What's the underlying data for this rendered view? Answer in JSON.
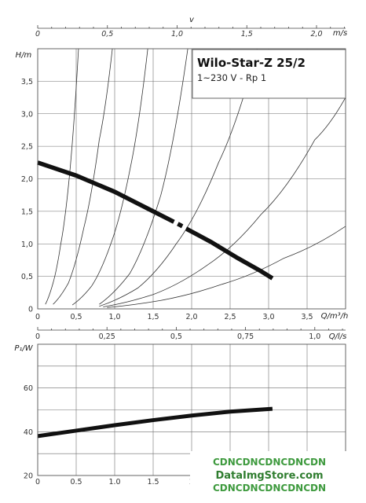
{
  "chart_data": [
    {
      "type": "line",
      "title": "Wilo-Star-Z 25/2",
      "subtitle": "1~230 V - Rp 1",
      "ylabel": "H/m",
      "xlabel": "Q/m³/h",
      "top_axis_title": "v",
      "top_axis_unit": "m/s",
      "top_axis_ticks": [
        "0",
        "0,5",
        "1,0",
        "1,5",
        "2,0"
      ],
      "top_axis_values": [
        0,
        0.5,
        1.0,
        1.5,
        2.0
      ],
      "xlim": [
        0,
        4.0
      ],
      "ylim": [
        0,
        4.0
      ],
      "x_ticks": [
        "0",
        "0,5",
        "1,0",
        "1,5",
        "2,0",
        "2,5",
        "3,0",
        "3,5"
      ],
      "x_tick_values": [
        0,
        0.5,
        1.0,
        1.5,
        2.0,
        2.5,
        3.0,
        3.5
      ],
      "y_ticks": [
        "0",
        "0,5",
        "1,0",
        "1,5",
        "2,0",
        "2,5",
        "3,0",
        "3,5"
      ],
      "y_tick_values": [
        0,
        0.5,
        1.0,
        1.5,
        2.0,
        2.5,
        3.0,
        3.5
      ],
      "grid": true,
      "series": [
        {
          "x": [
            0,
            0.5,
            1.0,
            1.5,
            1.75,
            1.85,
            1.95,
            2.25,
            2.6,
            2.9,
            3.05
          ],
          "y": [
            2.25,
            2.05,
            1.8,
            1.5,
            1.35,
            1.29,
            1.22,
            1.03,
            0.78,
            0.58,
            0.47
          ]
        }
      ],
      "system_curves": [
        {
          "x": [
            0.1,
            0.2,
            0.3,
            0.4,
            0.53
          ],
          "y": [
            0.07,
            0.4,
            1.0,
            1.9,
            4.0
          ]
        },
        {
          "x": [
            0.2,
            0.4,
            0.6,
            0.8,
            0.97
          ],
          "y": [
            0.07,
            0.4,
            1.25,
            2.6,
            4.0
          ]
        },
        {
          "x": [
            0.45,
            0.7,
            0.95,
            1.2,
            1.43
          ],
          "y": [
            0.06,
            0.35,
            1.0,
            2.15,
            4.0
          ]
        },
        {
          "x": [
            0.8,
            1.2,
            1.6,
            1.95
          ],
          "y": [
            0.07,
            0.55,
            1.75,
            4.0
          ]
        },
        {
          "x": [
            0.8,
            1.3,
            1.8,
            2.35,
            2.85
          ],
          "y": [
            0.04,
            0.32,
            1.0,
            2.25,
            4.0
          ]
        },
        {
          "x": [
            0.85,
            1.5,
            2.2,
            2.9,
            3.6,
            4.0
          ],
          "y": [
            0.03,
            0.22,
            0.67,
            1.45,
            2.6,
            3.25
          ]
        },
        {
          "x": [
            0.9,
            1.6,
            2.4,
            3.2,
            4.0
          ],
          "y": [
            0.02,
            0.13,
            0.38,
            0.78,
            1.27
          ]
        }
      ]
    },
    {
      "type": "line",
      "ylabel": "P₁/W",
      "xlabel": "",
      "top_axis_title": "Q/l/s",
      "top_axis_ticks": [
        "0",
        "0,25",
        "0,5",
        "0,75",
        "1,0"
      ],
      "top_axis_values": [
        0,
        0.25,
        0.5,
        0.75,
        1.0
      ],
      "xlim": [
        0,
        4.0
      ],
      "ylim": [
        20,
        80
      ],
      "x_ticks": [
        "0",
        "0.5",
        "1.0",
        "1.5",
        "2"
      ],
      "x_tick_values": [
        0,
        0.5,
        1.0,
        1.5,
        2.0
      ],
      "y_ticks": [
        "20",
        "40",
        "60"
      ],
      "y_tick_values": [
        20,
        40,
        60
      ],
      "grid": true,
      "series": [
        {
          "x": [
            0,
            0.5,
            1.0,
            1.5,
            2.0,
            2.5,
            3.05
          ],
          "y": [
            38,
            40.5,
            43,
            45.3,
            47.4,
            49.2,
            50.5
          ]
        }
      ]
    }
  ],
  "watermark": {
    "line1": "CDNCDNCDNCDNCDN",
    "line2": "DataImgStore.com",
    "line3": "CDNCDNCDNCDNCDN"
  },
  "colors": {
    "curve": "#111111",
    "grid": "#6e6e6e",
    "watermark": "#3e9a3e"
  }
}
